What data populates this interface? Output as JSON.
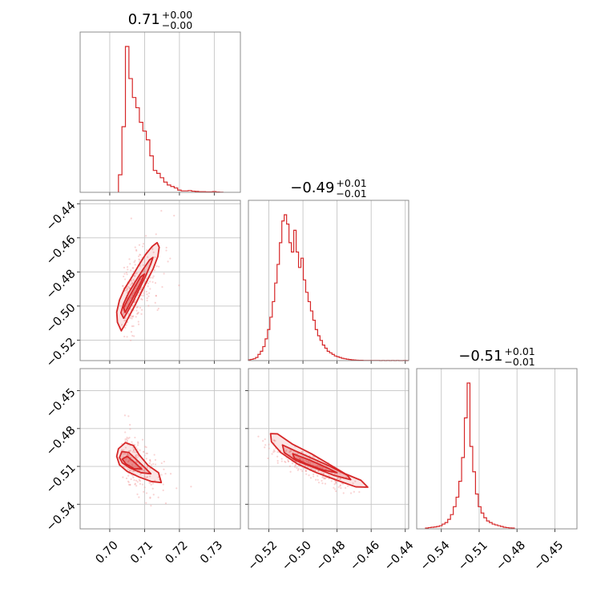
{
  "colors": {
    "line": "#d62728",
    "scatter": "#f2a0a0"
  },
  "chart_data": {
    "type": "corner",
    "parameters": [
      {
        "index": 0,
        "title": {
          "median": "0.71",
          "plus": "+0.00",
          "minus": "−0.00"
        },
        "range": [
          0.6915,
          0.7375
        ],
        "ticks": [
          0.7,
          0.71,
          0.72,
          0.73
        ],
        "tick_labels": [
          "0.70",
          "0.71",
          "0.72",
          "0.73"
        ],
        "histogram": {
          "type": "bar",
          "edges_start": 0.7025,
          "bin_width": 0.001,
          "counts": [
            0.12,
            0.45,
            1.0,
            0.78,
            0.65,
            0.58,
            0.48,
            0.42,
            0.36,
            0.25,
            0.15,
            0.13,
            0.1,
            0.07,
            0.05,
            0.04,
            0.03,
            0.015,
            0.01,
            0.01,
            0.012,
            0.008,
            0.006,
            0.004,
            0.004,
            0.003,
            0.003,
            0.005,
            0.002,
            0.001
          ]
        }
      },
      {
        "index": 1,
        "title": {
          "median": "−0.49",
          "plus": "+0.01",
          "minus": "−0.01"
        },
        "range": [
          -0.532,
          -0.438
        ],
        "ticks": [
          -0.52,
          -0.5,
          -0.48,
          -0.46,
          -0.44
        ],
        "tick_labels": [
          "−0.52",
          "−0.50",
          "−0.48",
          "−0.46",
          "−0.44"
        ],
        "histogram": {
          "type": "bar",
          "edges_start": -0.532,
          "bin_width": 0.0014,
          "counts": [
            0.005,
            0.008,
            0.012,
            0.02,
            0.04,
            0.06,
            0.09,
            0.14,
            0.2,
            0.28,
            0.38,
            0.5,
            0.62,
            0.76,
            0.9,
            0.94,
            0.88,
            0.76,
            0.7,
            0.84,
            0.7,
            0.6,
            0.66,
            0.52,
            0.44,
            0.38,
            0.32,
            0.26,
            0.2,
            0.16,
            0.13,
            0.1,
            0.08,
            0.06,
            0.05,
            0.04,
            0.03,
            0.025,
            0.02,
            0.015,
            0.012,
            0.009,
            0.007,
            0.005,
            0.004,
            0.003,
            0.002,
            0.002,
            0.001,
            0.001,
            0.001,
            0.001,
            0.001,
            0.001,
            0.001,
            0.0,
            0.001,
            0.0,
            0.001,
            0.0,
            0.001,
            0.0,
            0.001,
            0.0,
            0.0,
            0.001,
            0.0
          ]
        }
      },
      {
        "index": 2,
        "title": {
          "median": "−0.51",
          "plus": "+0.01",
          "minus": "−0.01"
        },
        "range": [
          -0.5595,
          -0.4325
        ],
        "ticks": [
          -0.54,
          -0.51,
          -0.48,
          -0.45
        ],
        "tick_labels": [
          "−0.54",
          "−0.51",
          "−0.48",
          "−0.45"
        ],
        "histogram": {
          "type": "bar",
          "edges_start": -0.5525,
          "bin_width": 0.0022,
          "counts": [
            0.005,
            0.008,
            0.01,
            0.012,
            0.015,
            0.02,
            0.03,
            0.04,
            0.06,
            0.09,
            0.14,
            0.2,
            0.3,
            0.45,
            0.7,
            0.92,
            0.52,
            0.36,
            0.22,
            0.14,
            0.1,
            0.07,
            0.05,
            0.04,
            0.03,
            0.025,
            0.02,
            0.015,
            0.01,
            0.008,
            0.006,
            0.005
          ]
        }
      }
    ],
    "pairs": [
      {
        "x_param": 0,
        "y_param": 1,
        "levels": [
          [
            [
              0.7033,
              -0.5145
            ],
            [
              0.7042,
              -0.5115
            ],
            [
              0.7055,
              -0.5062
            ],
            [
              0.7072,
              -0.4998
            ],
            [
              0.709,
              -0.4922
            ],
            [
              0.7108,
              -0.4848
            ],
            [
              0.7125,
              -0.478
            ],
            [
              0.7138,
              -0.471
            ],
            [
              0.7142,
              -0.4655
            ],
            [
              0.7136,
              -0.4628
            ],
            [
              0.7122,
              -0.465
            ],
            [
              0.7102,
              -0.47
            ],
            [
              0.7082,
              -0.4765
            ],
            [
              0.7062,
              -0.4835
            ],
            [
              0.7042,
              -0.49
            ],
            [
              0.7028,
              -0.4965
            ],
            [
              0.702,
              -0.5035
            ],
            [
              0.7022,
              -0.5095
            ]
          ],
          [
            [
              0.704,
              -0.5072
            ],
            [
              0.7052,
              -0.503
            ],
            [
              0.7068,
              -0.497
            ],
            [
              0.7086,
              -0.4895
            ],
            [
              0.7104,
              -0.482
            ],
            [
              0.7118,
              -0.4752
            ],
            [
              0.7124,
              -0.4715
            ],
            [
              0.7114,
              -0.473
            ],
            [
              0.7094,
              -0.479
            ],
            [
              0.7074,
              -0.4855
            ],
            [
              0.7055,
              -0.492
            ],
            [
              0.704,
              -0.4985
            ],
            [
              0.7032,
              -0.504
            ]
          ],
          [
            [
              0.7044,
              -0.5038
            ],
            [
              0.7058,
              -0.4985
            ],
            [
              0.7076,
              -0.4915
            ],
            [
              0.7092,
              -0.485
            ],
            [
              0.71,
              -0.4812
            ],
            [
              0.7088,
              -0.483
            ],
            [
              0.707,
              -0.4895
            ],
            [
              0.7052,
              -0.496
            ],
            [
              0.704,
              -0.501
            ]
          ]
        ]
      },
      {
        "x_param": 0,
        "y_param": 2,
        "levels": [
          [
            [
              0.702,
              -0.502
            ],
            [
              0.7025,
              -0.496
            ],
            [
              0.7045,
              -0.4912
            ],
            [
              0.7068,
              -0.4935
            ],
            [
              0.7085,
              -0.501
            ],
            [
              0.711,
              -0.5092
            ],
            [
              0.714,
              -0.515
            ],
            [
              0.7148,
              -0.5228
            ],
            [
              0.712,
              -0.522
            ],
            [
              0.7085,
              -0.5185
            ],
            [
              0.705,
              -0.514
            ],
            [
              0.7028,
              -0.5088
            ]
          ],
          [
            [
              0.7028,
              -0.503
            ],
            [
              0.7035,
              -0.4982
            ],
            [
              0.7055,
              -0.499
            ],
            [
              0.7078,
              -0.505
            ],
            [
              0.71,
              -0.5108
            ],
            [
              0.7118,
              -0.5158
            ],
            [
              0.709,
              -0.515
            ],
            [
              0.7058,
              -0.5112
            ],
            [
              0.7036,
              -0.5072
            ]
          ],
          [
            [
              0.7036,
              -0.5042
            ],
            [
              0.705,
              -0.502
            ],
            [
              0.7072,
              -0.507
            ],
            [
              0.7092,
              -0.5122
            ],
            [
              0.707,
              -0.5118
            ],
            [
              0.7046,
              -0.508
            ]
          ]
        ]
      },
      {
        "x_param": 1,
        "y_param": 2,
        "levels": [
          [
            [
              -0.519,
              -0.484
            ],
            [
              -0.515,
              -0.4842
            ],
            [
              -0.506,
              -0.4925
            ],
            [
              -0.495,
              -0.5
            ],
            [
              -0.485,
              -0.508
            ],
            [
              -0.475,
              -0.516
            ],
            [
              -0.466,
              -0.521
            ],
            [
              -0.462,
              -0.5265
            ],
            [
              -0.469,
              -0.5262
            ],
            [
              -0.48,
              -0.521
            ],
            [
              -0.492,
              -0.515
            ],
            [
              -0.503,
              -0.5082
            ],
            [
              -0.513,
              -0.499
            ],
            [
              -0.5185,
              -0.4905
            ]
          ],
          [
            [
              -0.512,
              -0.493
            ],
            [
              -0.504,
              -0.498
            ],
            [
              -0.494,
              -0.504
            ],
            [
              -0.484,
              -0.51
            ],
            [
              -0.474,
              -0.517
            ],
            [
              -0.472,
              -0.5205
            ],
            [
              -0.482,
              -0.517
            ],
            [
              -0.493,
              -0.5112
            ],
            [
              -0.504,
              -0.5055
            ],
            [
              -0.511,
              -0.499
            ]
          ],
          [
            [
              -0.506,
              -0.5
            ],
            [
              -0.496,
              -0.505
            ],
            [
              -0.486,
              -0.511
            ],
            [
              -0.48,
              -0.515
            ],
            [
              -0.488,
              -0.513
            ],
            [
              -0.498,
              -0.508
            ],
            [
              -0.505,
              -0.5035
            ]
          ]
        ]
      }
    ]
  }
}
